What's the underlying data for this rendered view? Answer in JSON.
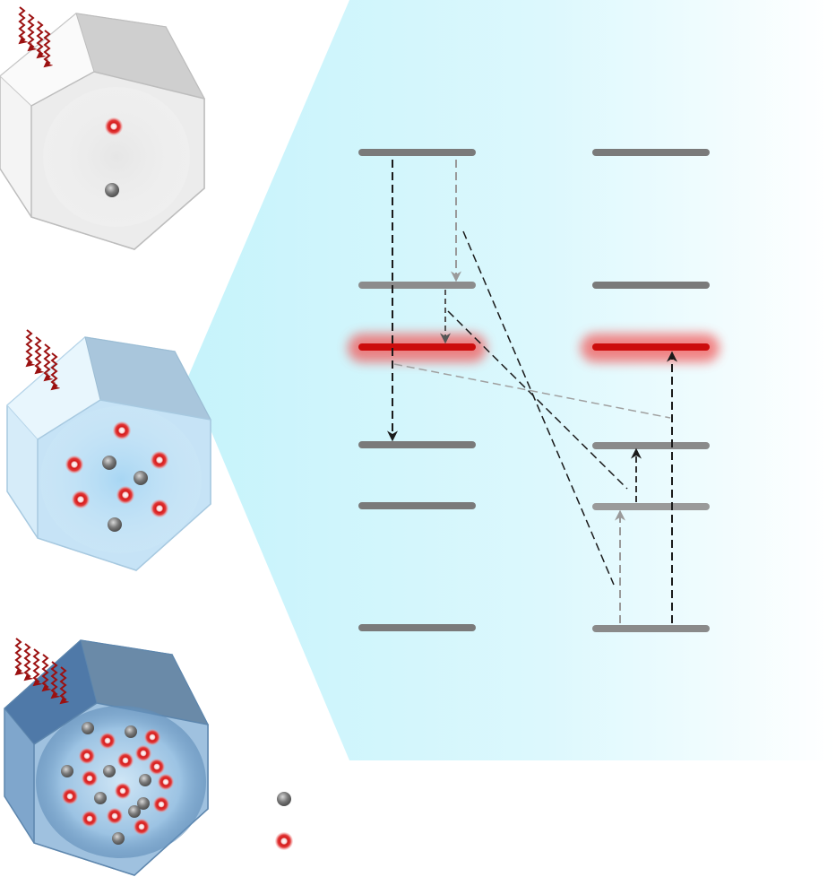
{
  "crystals": [
    {
      "id": "top",
      "tint": "#f0f0f0",
      "dopant_count": 1,
      "host_count": 1
    },
    {
      "id": "middle",
      "tint": "#d2ebfa",
      "dopant_count": 6,
      "host_count": 3
    },
    {
      "id": "bottom",
      "tint": "#6b96c0",
      "dopant_count": 14,
      "host_count": 9
    }
  ],
  "energy_levels": {
    "left_column": [
      "upper",
      "intermediate",
      "emitting",
      "lower-1",
      "lower-2",
      "ground"
    ],
    "right_column": [
      "upper",
      "intermediate",
      "emitting",
      "lower-1",
      "lower-2",
      "ground"
    ],
    "highlight_color": "#d01010"
  },
  "legend": {
    "host_ion_color": "#808080",
    "dopant_ion_color": "#d41a1a"
  },
  "colors": {
    "beam": "#d8f7fd",
    "level": "#707070",
    "arrow_dark": "#222222",
    "arrow_light": "#9a9a9a",
    "photon": "#9b1010"
  }
}
